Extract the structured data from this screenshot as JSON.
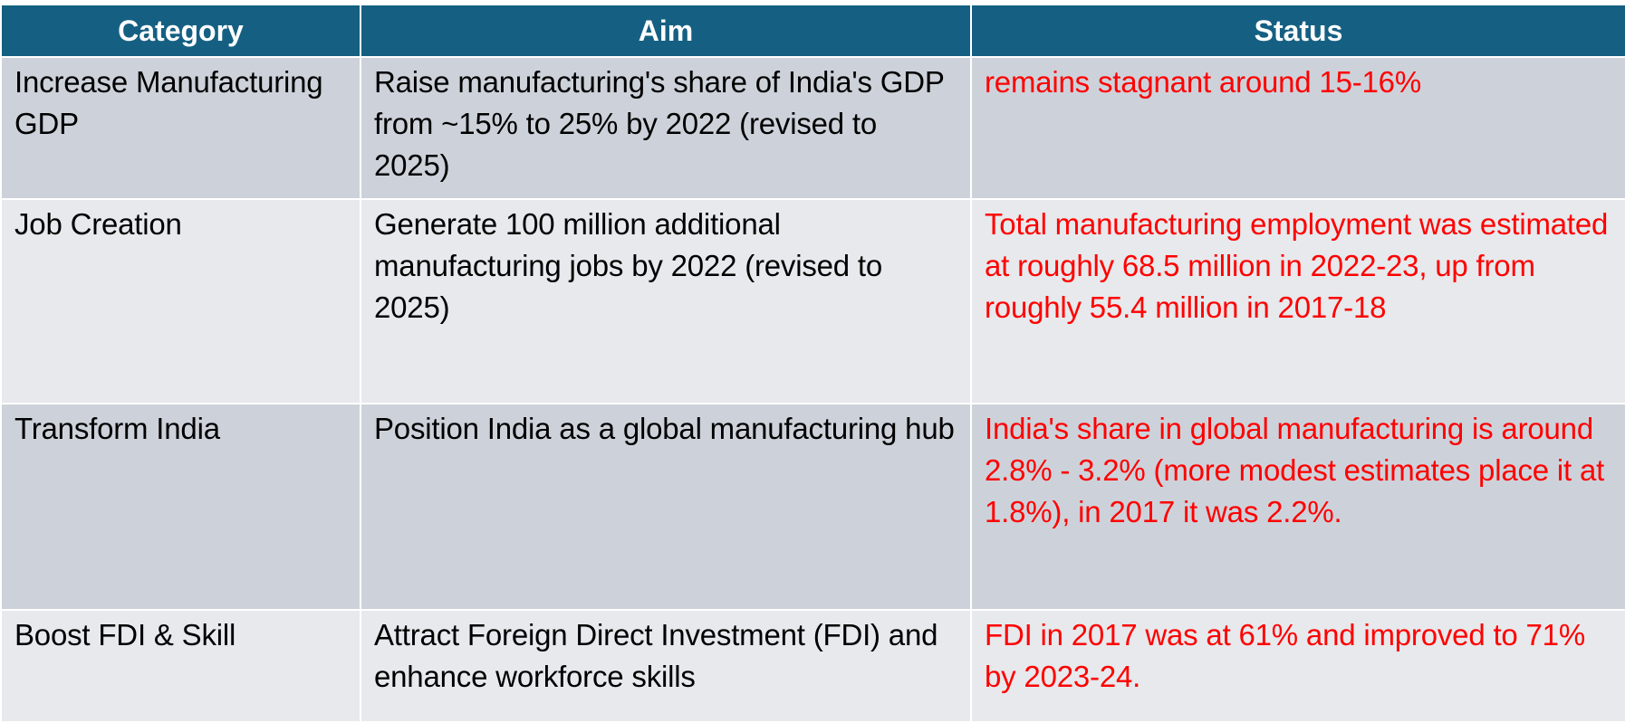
{
  "table": {
    "headers": [
      "Category",
      "Aim",
      "Status"
    ],
    "rows": [
      {
        "category": "Increase Manufacturing GDP",
        "aim": "Raise manufacturing's share of India's GDP from ~15% to 25% by 2022 (revised to 2025)",
        "status": "remains stagnant around 15-16%"
      },
      {
        "category": "Job Creation",
        "aim": "Generate 100 million additional manufacturing jobs by 2022 (revised to 2025)",
        "status": "Total manufacturing employment was estimated at roughly 68.5 million in 2022-23, up from roughly 55.4 million in 2017-18"
      },
      {
        "category": "Transform India",
        "aim": "Position India as a global manufacturing hub",
        "status": "India's share in global manufacturing is around 2.8% - 3.2% (more modest estimates place it at 1.8%), in 2017 it was 2.2%."
      },
      {
        "category": "Boost FDI & Skill",
        "aim": "Attract Foreign Direct Investment (FDI) and enhance workforce skills",
        "status": "FDI in 2017 was at 61% and improved to 71% by 2023-24."
      }
    ]
  },
  "colors": {
    "header_background": "#156082",
    "header_text": "#ffffff",
    "row_dark": "#cdd2da",
    "row_light": "#e7e9ec",
    "status_text": "#ff0000"
  }
}
